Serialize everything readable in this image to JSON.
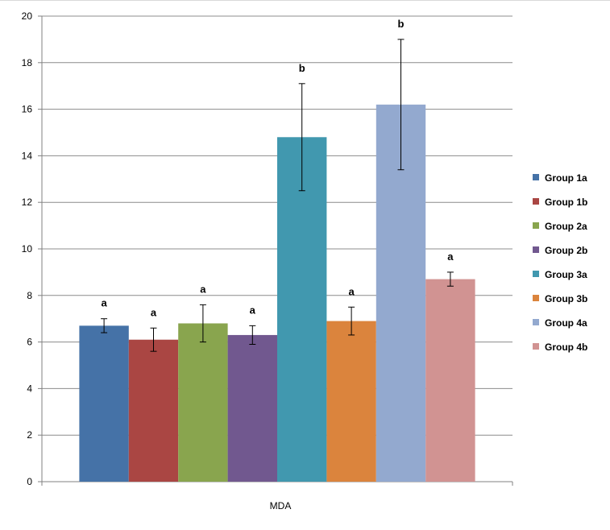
{
  "chart_data": {
    "type": "bar",
    "categories": [
      "MDA"
    ],
    "xlabel": "MDA",
    "ylim": [
      0,
      20
    ],
    "yticks": [
      0,
      2,
      4,
      6,
      8,
      10,
      12,
      14,
      16,
      18,
      20
    ],
    "grid": true,
    "legend_position": "right",
    "series": [
      {
        "name": "Group 1a",
        "value": 6.7,
        "error": 0.3,
        "sig": "a",
        "color": "#4572a7"
      },
      {
        "name": "Group 1b",
        "value": 6.1,
        "error": 0.5,
        "sig": "a",
        "color": "#aa4643"
      },
      {
        "name": "Group 2a",
        "value": 6.8,
        "error": 0.8,
        "sig": "a",
        "color": "#89a54e"
      },
      {
        "name": "Group 2b",
        "value": 6.3,
        "error": 0.4,
        "sig": "a",
        "color": "#71588f"
      },
      {
        "name": "Group 3a",
        "value": 14.8,
        "error": 2.3,
        "sig": "b",
        "color": "#4198af"
      },
      {
        "name": "Group 3b",
        "value": 6.9,
        "error": 0.6,
        "sig": "a",
        "color": "#db843d"
      },
      {
        "name": "Group 4a",
        "value": 16.2,
        "error": 2.8,
        "sig": "b",
        "color": "#93a9cf"
      },
      {
        "name": "Group 4b",
        "value": 8.7,
        "error": 0.3,
        "sig": "a",
        "color": "#d19392"
      }
    ]
  }
}
